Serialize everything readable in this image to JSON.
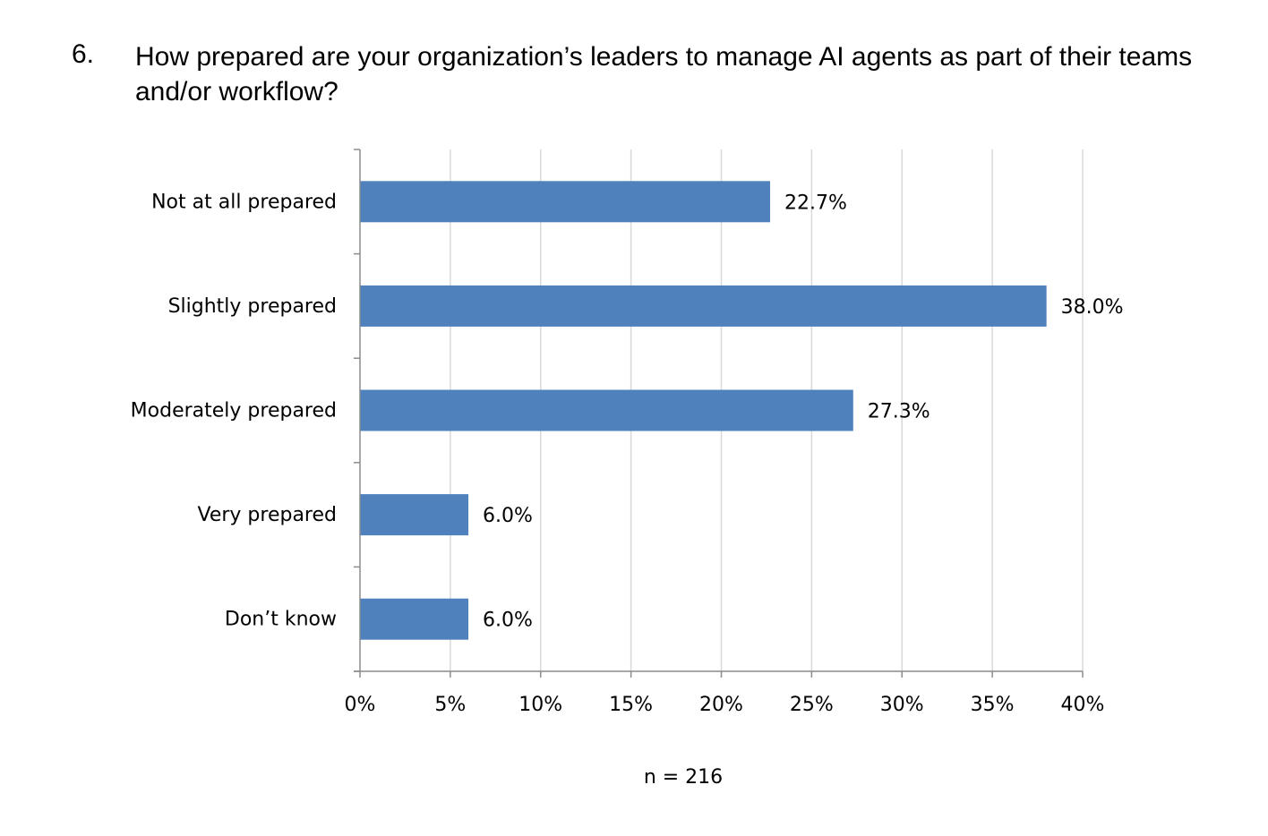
{
  "question": {
    "number": "6.",
    "text": "How prepared are your organization’s leaders to manage AI agents as part of their teams and/or workflow?"
  },
  "chart_data": {
    "type": "bar",
    "orientation": "horizontal",
    "categories": [
      "Not at all prepared",
      "Slightly prepared",
      "Moderately prepared",
      "Very prepared",
      "Don’t know"
    ],
    "values": [
      22.7,
      38.0,
      27.3,
      6.0,
      6.0
    ],
    "value_labels": [
      "22.7%",
      "38.0%",
      "27.3%",
      "6.0%",
      "6.0%"
    ],
    "xlim": [
      0,
      40
    ],
    "x_ticks": [
      0,
      5,
      10,
      15,
      20,
      25,
      30,
      35,
      40
    ],
    "x_tick_labels": [
      "0%",
      "5%",
      "10%",
      "15%",
      "20%",
      "25%",
      "30%",
      "35%",
      "40%"
    ],
    "grid": true,
    "bar_color": "#4f81bd",
    "grid_color": "#d9d9d9",
    "axis_color": "#8c8c8c"
  },
  "footer": {
    "n_label": "n = 216"
  }
}
